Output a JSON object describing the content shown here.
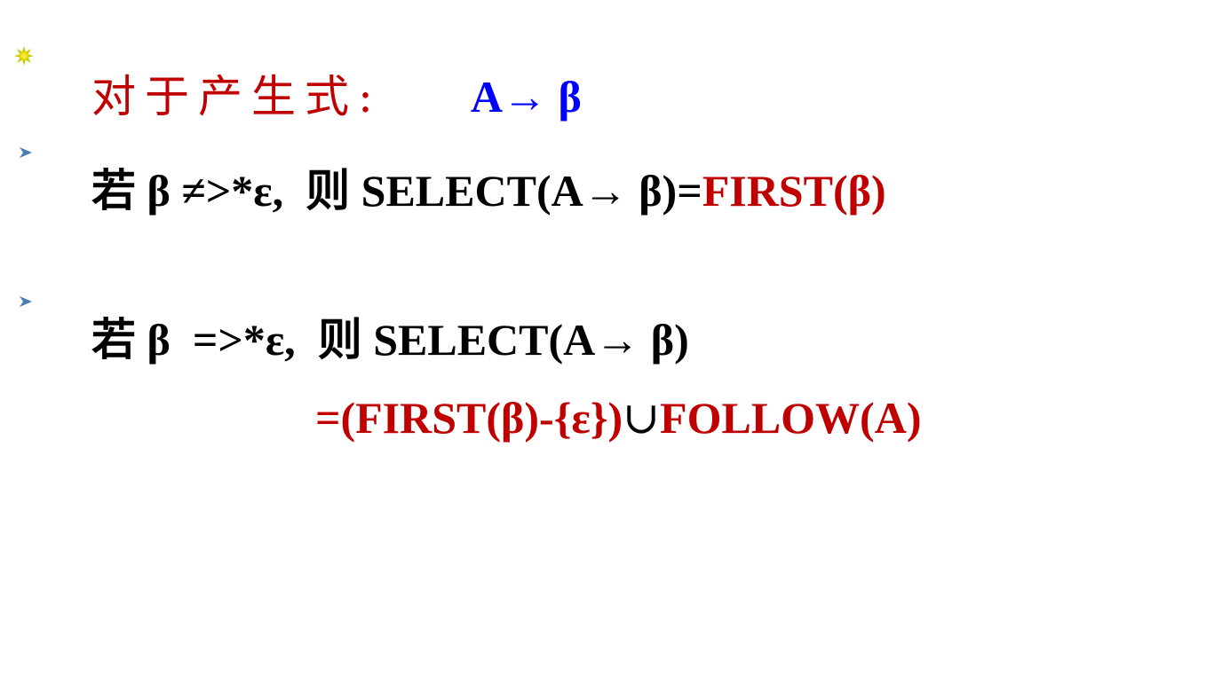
{
  "colors": {
    "title_red": "#c00000",
    "highlight_blue": "#0000ff",
    "text_black": "#000000",
    "bullet_star": "#c8c800",
    "bullet_arrow": "#1f4e79"
  },
  "bullets": {
    "title_bullet_icon": "sun-bullet-icon",
    "rule_bullet_icon": "triangle-arrow-bullet-icon"
  },
  "line1": {
    "label": "对于产生式:",
    "production": "A→ β"
  },
  "line2": {
    "prefix": "若 β ≠>*ε,",
    "then": "则",
    "select": "SELECT(A→ β)=",
    "result": "FIRST(β)"
  },
  "line3": {
    "prefix": "若 β  =>*ε,",
    "then": "则",
    "select": "SELECT(A→ β)"
  },
  "line4": {
    "part1": "=(FIRST(β)-{ε})",
    "union": "∪",
    "part2": "FOLLOW(A)"
  }
}
